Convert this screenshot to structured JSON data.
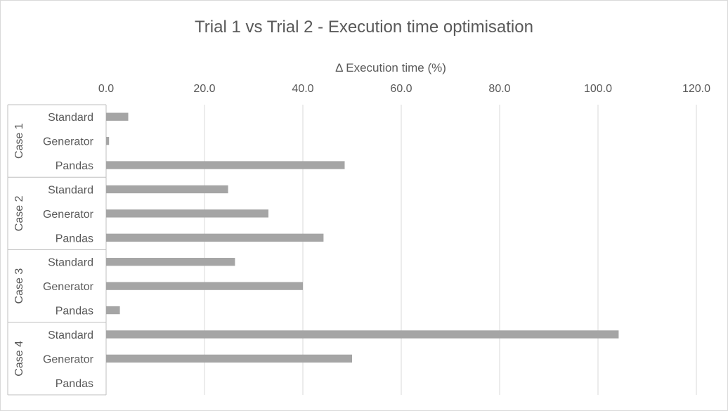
{
  "chart_data": {
    "type": "bar",
    "orientation": "horizontal",
    "title": "Trial 1 vs Trial 2 - Execution time optimisation",
    "xlabel": "Δ Execution time (%)",
    "ylabel": "",
    "xlim": [
      0,
      120
    ],
    "x_ticks": [
      "0.0",
      "20.0",
      "40.0",
      "60.0",
      "80.0",
      "100.0",
      "120.0"
    ],
    "grid": true,
    "axis_position": "top",
    "bar_color": "#a5a5a5",
    "groups": [
      {
        "name": "Case 1",
        "categories": [
          "Standard",
          "Generator",
          "Pandas"
        ],
        "values": [
          4.5,
          0.6,
          48.5
        ]
      },
      {
        "name": "Case 2",
        "categories": [
          "Standard",
          "Generator",
          "Pandas"
        ],
        "values": [
          24.8,
          33.0,
          44.2
        ]
      },
      {
        "name": "Case 3",
        "categories": [
          "Standard",
          "Generator",
          "Pandas"
        ],
        "values": [
          26.2,
          40.0,
          2.8
        ]
      },
      {
        "name": "Case 4",
        "categories": [
          "Standard",
          "Generator",
          "Pandas"
        ],
        "values": [
          104.2,
          50.0,
          0
        ]
      }
    ]
  }
}
